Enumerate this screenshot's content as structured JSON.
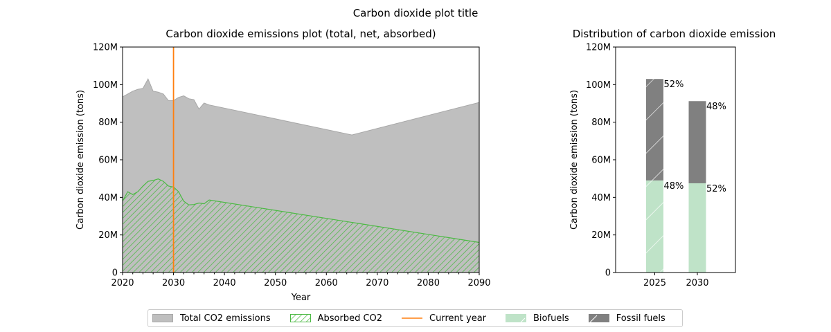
{
  "suptitle": "Carbon dioxide plot title",
  "chart_data": [
    {
      "type": "area",
      "title": "Carbon dioxide emissions plot (total, net, absorbed)",
      "xlabel": "Year",
      "ylabel": "Carbon dioxide emission (tons)",
      "xlim": [
        2020,
        2090
      ],
      "ylim": [
        0,
        120000000
      ],
      "x_ticks": [
        "2020",
        "2030",
        "2040",
        "2050",
        "2060",
        "2070",
        "2080",
        "2090"
      ],
      "y_ticks": [
        "0",
        "20M",
        "40M",
        "60M",
        "80M",
        "100M",
        "120M"
      ],
      "current_year": 2030,
      "series": [
        {
          "name": "Total CO2 emissions",
          "color": "#bfbfbf",
          "points": [
            [
              2020,
              93.5
            ],
            [
              2021,
              95
            ],
            [
              2022,
              96.5
            ],
            [
              2023,
              97.5
            ],
            [
              2024,
              98
            ],
            [
              2025,
              103
            ],
            [
              2026,
              96.5
            ],
            [
              2027,
              96
            ],
            [
              2028,
              95
            ],
            [
              2029,
              91.5
            ],
            [
              2030,
              91.5
            ],
            [
              2031,
              93.2
            ],
            [
              2032,
              94
            ],
            [
              2033,
              92.5
            ],
            [
              2034,
              92
            ],
            [
              2035,
              87
            ],
            [
              2036,
              90.2
            ],
            [
              2037,
              89.2
            ],
            [
              2065,
              73.2
            ],
            [
              2090,
              90.5
            ]
          ]
        },
        {
          "name": "Absorbed CO2",
          "color": "#4cb944",
          "points": [
            [
              2020,
              38
            ],
            [
              2021,
              43
            ],
            [
              2022,
              41.5
            ],
            [
              2023,
              43
            ],
            [
              2024,
              46
            ],
            [
              2025,
              48.5
            ],
            [
              2026,
              49
            ],
            [
              2027,
              49.8
            ],
            [
              2028,
              48.5
            ],
            [
              2029,
              46
            ],
            [
              2030,
              45.5
            ],
            [
              2031,
              43
            ],
            [
              2032,
              38
            ],
            [
              2033,
              36
            ],
            [
              2034,
              36.2
            ],
            [
              2035,
              37
            ],
            [
              2036,
              36.6
            ],
            [
              2037,
              38.6
            ],
            [
              2090,
              16
            ]
          ]
        }
      ],
      "current_year_line": {
        "name": "Current year",
        "color": "#ff7f0e"
      }
    },
    {
      "type": "bar",
      "stacked": true,
      "title": "Distribution of carbon dioxide emission",
      "ylabel": "Carbon dioxide emission (tons)",
      "ylim": [
        0,
        120000000
      ],
      "y_ticks": [
        "0",
        "20M",
        "40M",
        "60M",
        "80M",
        "100M",
        "120M"
      ],
      "categories": [
        "2025",
        "2030"
      ],
      "series": [
        {
          "name": "Biofuels",
          "color": "#bfe3c8",
          "hatch": "/",
          "values": [
            49,
            47.5
          ],
          "labels": [
            "48%",
            "52%"
          ]
        },
        {
          "name": "Fossil fuels",
          "color": "#808080",
          "hatch": "/",
          "values": [
            54,
            43.7
          ],
          "labels": [
            "52%",
            "48%"
          ]
        }
      ]
    }
  ],
  "legend": [
    {
      "label": "Total CO2 emissions",
      "icon": "gray-patch"
    },
    {
      "label": "Absorbed CO2",
      "icon": "green-hatched-patch"
    },
    {
      "label": "Current year",
      "icon": "orange-line"
    },
    {
      "label": "Biofuels",
      "icon": "light-green-patch"
    },
    {
      "label": "Fossil fuels",
      "icon": "dark-gray-hatched-patch"
    }
  ]
}
